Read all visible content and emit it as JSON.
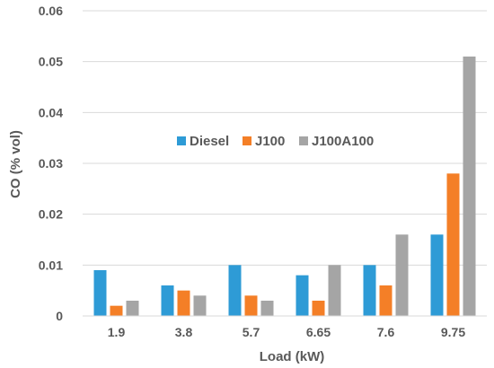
{
  "chart_data": {
    "type": "bar",
    "title": "",
    "xlabel": "Load (kW)",
    "ylabel": "CO (% vol)",
    "categories": [
      "1.9",
      "3.8",
      "5.7",
      "6.65",
      "7.6",
      "9.75"
    ],
    "series": [
      {
        "name": "Diesel",
        "color": "#2E9BD6",
        "values": [
          0.009,
          0.006,
          0.01,
          0.008,
          0.01,
          0.016
        ]
      },
      {
        "name": "J100",
        "color": "#F47F27",
        "values": [
          0.002,
          0.005,
          0.004,
          0.003,
          0.006,
          0.028
        ]
      },
      {
        "name": "J100A100",
        "color": "#A5A5A5",
        "values": [
          0.003,
          0.004,
          0.003,
          0.01,
          0.016,
          0.051
        ]
      }
    ],
    "ylim": [
      0,
      0.06
    ],
    "yticks": [
      "0",
      "0.01",
      "0.02",
      "0.03",
      "0.04",
      "0.05",
      "0.06"
    ],
    "grid": true,
    "legend": "upper-center"
  }
}
